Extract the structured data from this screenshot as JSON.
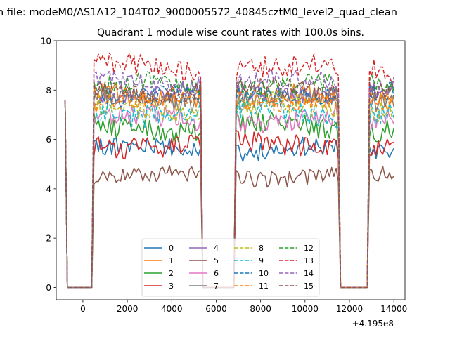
{
  "chart_data": {
    "type": "line",
    "suptitle": "n file: modeM0/AS1A12_104T02_9000005572_40845cztM0_level2_quad_clean",
    "title": "Quadrant 1 module wise count rates with 100.0s bins.",
    "xlabel": "",
    "ylabel": "",
    "x_offset_label": "+4.195e8",
    "xlim": [
      -1200,
      14500
    ],
    "ylim": [
      -0.5,
      10
    ],
    "x_ticks": [
      0,
      2000,
      4000,
      6000,
      8000,
      10000,
      12000,
      14000
    ],
    "x_tick_labels": [
      "0",
      "2000",
      "4000",
      "6000",
      "8000",
      "10000",
      "12000",
      "14000"
    ],
    "y_ticks": [
      0,
      2,
      4,
      6,
      8,
      10
    ],
    "y_tick_labels": [
      "0",
      "2",
      "4",
      "6",
      "8",
      "10"
    ],
    "bin_seconds": 100,
    "x_start": -800,
    "x_step": 100,
    "segments": [
      {
        "start_x": -800,
        "bins": 1,
        "level": 7.6
      },
      {
        "start_x": -700,
        "bins": 12,
        "level": 0
      },
      {
        "start_x": 500,
        "bins": 49,
        "level": "on"
      },
      {
        "start_x": 5400,
        "bins": 15,
        "level": 0
      },
      {
        "start_x": 6900,
        "bins": 47,
        "level": "on"
      },
      {
        "start_x": 11600,
        "bins": 13,
        "level": 0
      },
      {
        "start_x": 12900,
        "bins": 12,
        "level": "on"
      }
    ],
    "legend_position": "lower-center",
    "legend_columns": 4,
    "series": [
      {
        "name": "0",
        "color": "#1f77b4",
        "dash": "solid",
        "mean": 5.6,
        "amp": 0.3
      },
      {
        "name": "1",
        "color": "#ff7f0e",
        "dash": "solid",
        "mean": 7.7,
        "amp": 0.35
      },
      {
        "name": "2",
        "color": "#2ca02c",
        "dash": "solid",
        "mean": 6.5,
        "amp": 0.35
      },
      {
        "name": "3",
        "color": "#d62728",
        "dash": "solid",
        "mean": 5.8,
        "amp": 0.35
      },
      {
        "name": "4",
        "color": "#9467bd",
        "dash": "solid",
        "mean": 7.9,
        "amp": 0.3
      },
      {
        "name": "5",
        "color": "#8c564b",
        "dash": "solid",
        "mean": 4.5,
        "amp": 0.25
      },
      {
        "name": "6",
        "color": "#e377c2",
        "dash": "solid",
        "mean": 6.8,
        "amp": 0.35
      },
      {
        "name": "7",
        "color": "#7f7f7f",
        "dash": "solid",
        "mean": 7.6,
        "amp": 0.3
      },
      {
        "name": "8",
        "color": "#bcbd22",
        "dash": "dashed",
        "mean": 7.3,
        "amp": 0.35
      },
      {
        "name": "9",
        "color": "#17becf",
        "dash": "dashed",
        "mean": 7.1,
        "amp": 0.35
      },
      {
        "name": "10",
        "color": "#1f77b4",
        "dash": "dashed",
        "mean": 7.8,
        "amp": 0.3
      },
      {
        "name": "11",
        "color": "#ff7f0e",
        "dash": "dashed",
        "mean": 7.6,
        "amp": 0.3
      },
      {
        "name": "12",
        "color": "#2ca02c",
        "dash": "dashed",
        "mean": 8.2,
        "amp": 0.3
      },
      {
        "name": "13",
        "color": "#d62728",
        "dash": "dashed",
        "mean": 8.9,
        "amp": 0.35
      },
      {
        "name": "14",
        "color": "#9467bd",
        "dash": "dashed",
        "mean": 8.3,
        "amp": 0.3
      },
      {
        "name": "15",
        "color": "#8c564b",
        "dash": "dashed",
        "mean": 8.0,
        "amp": 0.3
      }
    ]
  }
}
